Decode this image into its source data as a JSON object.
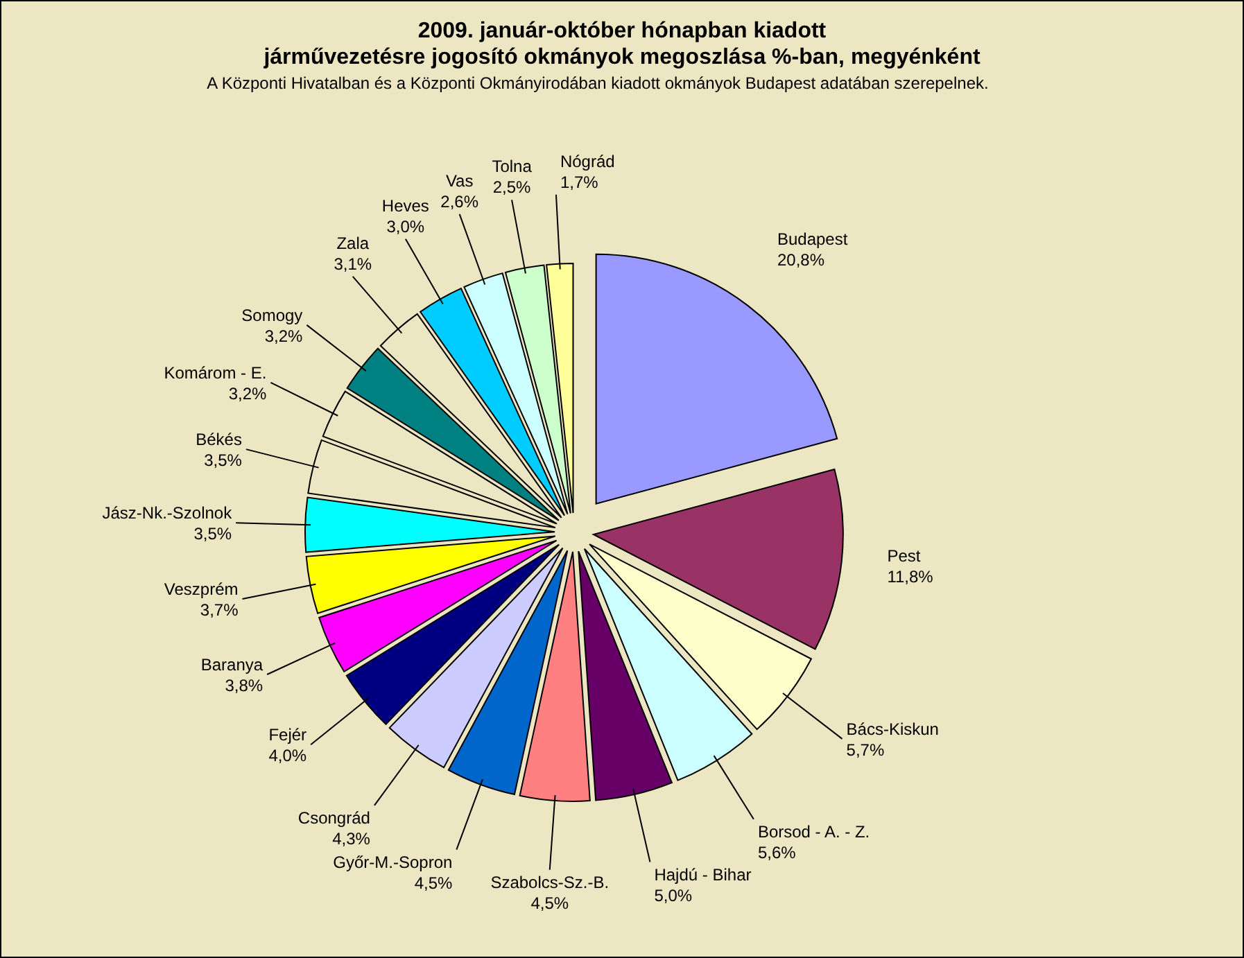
{
  "chart_data": {
    "type": "pie",
    "title": "2009. január-október hónapban kiadott\njárművezetésre jogosító okmányok megoszlása %-ban, megyénként",
    "subtitle": "A Központi Hivatalban és a Központi Okmányirodában kiadott okmányok Budapest adatában szerepelnek.",
    "categories": [
      "Budapest",
      "Pest",
      "Bács-Kiskun",
      "Borsod - A. - Z.",
      "Hajdú - Bihar",
      "Szabolcs-Sz.-B.",
      "Győr-M.-Sopron",
      "Csongrád",
      "Fejér",
      "Baranya",
      "Veszprém",
      "Jász-Nk.-Szolnok",
      "Békés",
      "Komárom - E.",
      "Somogy",
      "Zala",
      "Heves",
      "Vas",
      "Tolna",
      "Nógrád"
    ],
    "values": [
      20.8,
      11.8,
      5.7,
      5.6,
      5.0,
      4.5,
      4.5,
      4.3,
      4.0,
      3.8,
      3.7,
      3.5,
      3.5,
      3.2,
      3.2,
      3.1,
      3.0,
      2.6,
      2.5,
      1.7
    ],
    "value_labels": [
      "20,8%",
      "11,8%",
      "5,7%",
      "5,6%",
      "5,0%",
      "4,5%",
      "4,5%",
      "4,3%",
      "4,0%",
      "3,8%",
      "3,7%",
      "3,5%",
      "3,5%",
      "3,2%",
      "3,2%",
      "3,1%",
      "3,0%",
      "2,6%",
      "2,5%",
      "1,7%"
    ],
    "colors": [
      "#9999ff",
      "#993366",
      "#ffffcc",
      "#ccffff",
      "#660066",
      "#ff8080",
      "#0066cc",
      "#ccccff",
      "#000080",
      "#ff00ff",
      "#ffff00",
      "#00ffff",
      "#ede6c3",
      "#ede6c3",
      "#008080",
      "#ede6c3",
      "#00ccff",
      "#ccffff",
      "#ccffcc",
      "#ffff99"
    ]
  }
}
